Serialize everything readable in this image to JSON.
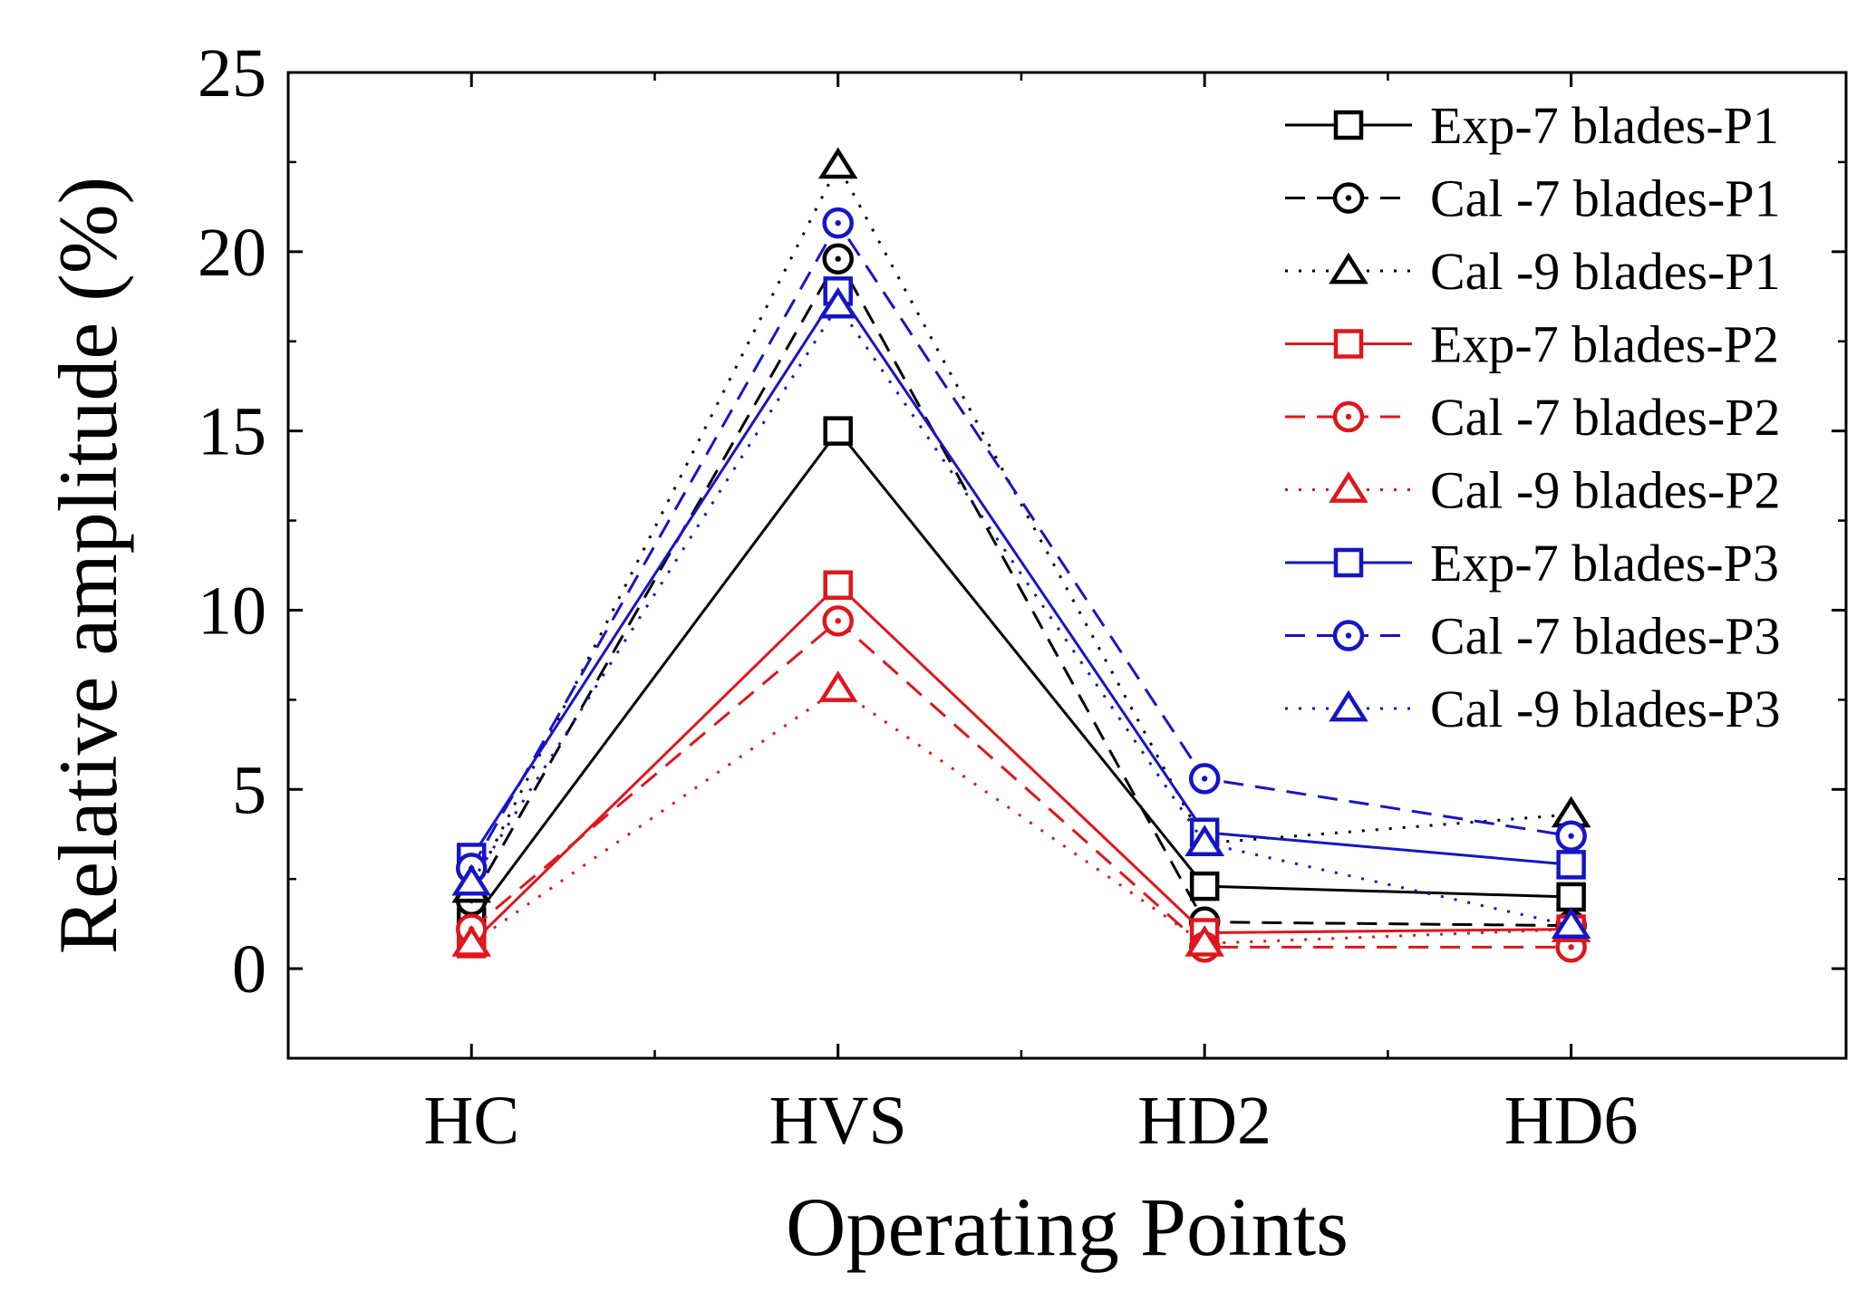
{
  "chart_data": {
    "type": "line",
    "title": "",
    "xlabel": "Operating Points",
    "ylabel": "Relative amplitude (%)",
    "categories": [
      "HC",
      "HVS",
      "HD2",
      "HD6"
    ],
    "ylim": [
      -2.5,
      25
    ],
    "yticks": [
      0,
      5,
      10,
      15,
      20,
      25
    ],
    "grid": false,
    "legend_position": "top-right",
    "series": [
      {
        "name": "Exp-7 blades-P1",
        "color": "#000000",
        "dash": "solid",
        "marker": "square",
        "values": [
          1.3,
          15.0,
          2.3,
          2.0
        ]
      },
      {
        "name": "Cal -7 blades-P1",
        "color": "#000000",
        "dash": "dashed",
        "marker": "circle",
        "values": [
          1.9,
          19.8,
          1.3,
          1.2
        ]
      },
      {
        "name": "Cal -9 blades-P1",
        "color": "#000000",
        "dash": "dotted",
        "marker": "triangle",
        "values": [
          2.2,
          22.4,
          3.5,
          4.3
        ]
      },
      {
        "name": "Exp-7 blades-P2",
        "color": "#e0161c",
        "dash": "solid",
        "marker": "square",
        "values": [
          0.7,
          10.7,
          1.0,
          1.1
        ]
      },
      {
        "name": "Cal -7 blades-P2",
        "color": "#e0161c",
        "dash": "dashed",
        "marker": "circle",
        "values": [
          1.1,
          9.7,
          0.6,
          0.6
        ]
      },
      {
        "name": "Cal -9 blades-P2",
        "color": "#e0161c",
        "dash": "dotted",
        "marker": "triangle",
        "values": [
          0.7,
          7.8,
          0.7,
          1.1
        ]
      },
      {
        "name": "Exp-7 blades-P3",
        "color": "#1515c8",
        "dash": "solid",
        "marker": "square",
        "values": [
          3.1,
          18.9,
          3.8,
          2.9
        ]
      },
      {
        "name": "Cal -7 blades-P3",
        "color": "#1515c8",
        "dash": "dashed",
        "marker": "circle",
        "values": [
          2.8,
          20.8,
          5.3,
          3.7
        ]
      },
      {
        "name": "Cal -9 blades-P3",
        "color": "#1515c8",
        "dash": "dotted",
        "marker": "triangle",
        "values": [
          2.4,
          18.5,
          3.5,
          1.2
        ]
      }
    ]
  }
}
